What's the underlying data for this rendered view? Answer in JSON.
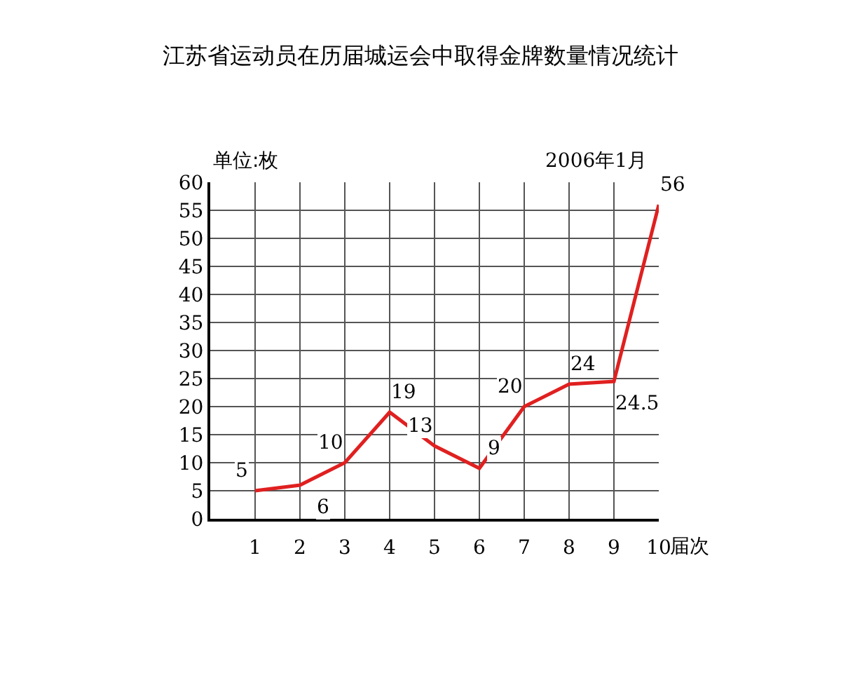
{
  "chart_data": {
    "type": "line",
    "title": "江苏省运动员在历届城运会中取得金牌数量情况统计",
    "xlabel": "届次",
    "ylabel": "单位:枚",
    "annotations": [
      "2006年1月"
    ],
    "x": [
      1,
      2,
      3,
      4,
      5,
      6,
      7,
      8,
      9,
      10
    ],
    "series": [
      {
        "color": "#e02020",
        "values": [
          5,
          6,
          10,
          19,
          13,
          9,
          20,
          24,
          24.5,
          56
        ]
      }
    ],
    "xlim": [
      0,
      10
    ],
    "xticks": [
      1,
      2,
      3,
      4,
      5,
      6,
      7,
      8,
      9,
      10
    ],
    "ylim": [
      0,
      60
    ],
    "yticks": [
      0,
      5,
      10,
      15,
      20,
      25,
      30,
      35,
      40,
      45,
      50,
      55,
      60
    ],
    "grid": true,
    "data_labels": true,
    "marker": "none",
    "line_style": "solid"
  }
}
